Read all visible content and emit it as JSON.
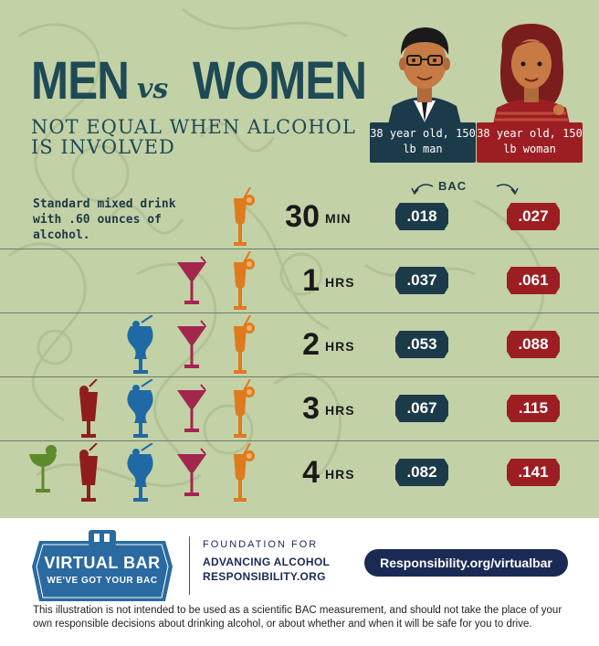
{
  "header": {
    "title_men": "MEN",
    "title_vs": "vs",
    "title_women": "WOMEN",
    "subtitle": "NOT EQUAL WHEN ALCOHOL IS INVOLVED"
  },
  "people": {
    "man_label": "38 year old, 150 lb man",
    "woman_label": "38 year old, 150 lb woman"
  },
  "bac_header": "BAC",
  "drink_description": "Standard mixed drink with .60 ounces of alcohol.",
  "rows": [
    {
      "time": "30",
      "unit": "MIN",
      "man_bac": ".018",
      "woman_bac": ".027",
      "drinks": [
        "cocktail"
      ]
    },
    {
      "time": "1",
      "unit": "HRS",
      "man_bac": ".037",
      "woman_bac": ".061",
      "drinks": [
        "martini",
        "cocktail"
      ]
    },
    {
      "time": "2",
      "unit": "HRS",
      "man_bac": ".053",
      "woman_bac": ".088",
      "drinks": [
        "hurricane",
        "martini",
        "cocktail"
      ]
    },
    {
      "time": "3",
      "unit": "HRS",
      "man_bac": ".067",
      "woman_bac": ".115",
      "drinks": [
        "highball",
        "hurricane",
        "martini",
        "cocktail"
      ]
    },
    {
      "time": "4",
      "unit": "HRS",
      "man_bac": ".082",
      "woman_bac": ".141",
      "drinks": [
        "margarita",
        "highball",
        "hurricane",
        "martini",
        "cocktail"
      ]
    }
  ],
  "colors": {
    "background": "#c3d1a7",
    "navy": "#1b3a4a",
    "red": "#9c1e23",
    "orange": "#e07a1f",
    "magenta": "#a3264f",
    "blue": "#1f6aa5",
    "darkred": "#8f1d1d",
    "green": "#5d8a2a"
  },
  "footer": {
    "badge_title": "VIRTUAL BAR",
    "badge_sub": "WE'VE GOT YOUR BAC",
    "org_line1": "FOUNDATION FOR",
    "org_line2": "ADVANCING ALCOHOL",
    "org_line3": "RESPONSIBILITY.ORG",
    "url": "Responsibility.org/virtualbar",
    "disclaimer": "This illustration is not intended to be used as a scientific BAC measurement, and should not take the place of your own responsible decisions about drinking alcohol, or about whether and when it will be safe for you to drive."
  }
}
